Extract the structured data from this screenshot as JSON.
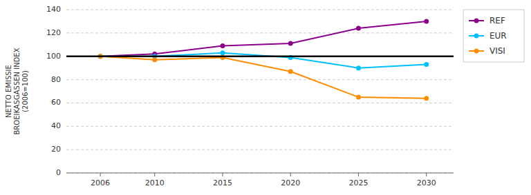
{
  "chart_data": {
    "type": "line",
    "y_label": "NETTO EMISSIE\nBROEIKASGASSEN INDEX\n(2006=100)",
    "x": [
      2006,
      2010,
      2015,
      2020,
      2025,
      2030
    ],
    "series": [
      {
        "name": "REF",
        "color": "#8B008B",
        "marker": "circle",
        "values": [
          100,
          102,
          109,
          111,
          124,
          130
        ]
      },
      {
        "name": "EUR",
        "color": "#00BFFF",
        "marker": "circle",
        "values": [
          100,
          100,
          103,
          99,
          90,
          93
        ]
      },
      {
        "name": "VISI",
        "color": "#FF8C00",
        "marker": "circle",
        "values": [
          100,
          97,
          99,
          87,
          65,
          64
        ]
      }
    ],
    "baseline": 100,
    "xlim": [
      2003.5,
      2032
    ],
    "xticks": [
      2006,
      2010,
      2015,
      2020,
      2025,
      2030
    ],
    "ylim": [
      0,
      140
    ],
    "yticks": [
      0,
      20,
      40,
      60,
      80,
      100,
      120,
      140
    ],
    "grid": true,
    "legend": "right"
  }
}
